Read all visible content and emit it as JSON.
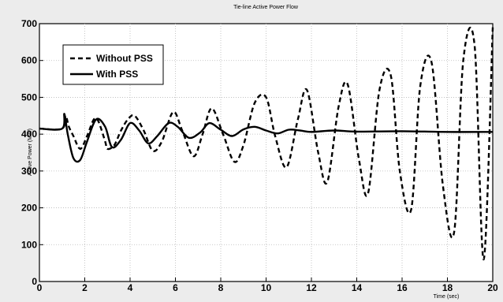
{
  "chart_data": {
    "type": "line",
    "title": "Tie-line Active Power Flow",
    "xlabel": "Time (sec)",
    "ylabel": "Active Power (MW)",
    "xlim": [
      0,
      20
    ],
    "ylim": [
      0,
      700
    ],
    "xticks": [
      "0",
      "2",
      "4",
      "6",
      "8",
      "10",
      "12",
      "14",
      "16",
      "18",
      "20"
    ],
    "yticks": [
      "0",
      "100",
      "200",
      "300",
      "400",
      "500",
      "600",
      "700"
    ],
    "grid": true,
    "legend": "top-left",
    "series": [
      {
        "name": "Without PSS",
        "style": "dashed",
        "color": "#000000",
        "x": [
          0,
          1.0,
          1.15,
          1.3,
          1.5,
          1.8,
          2.1,
          2.4,
          2.6,
          2.9,
          3.0,
          3.3,
          3.6,
          3.9,
          4.2,
          4.6,
          5.0,
          5.4,
          5.9,
          6.3,
          6.8,
          7.2,
          7.6,
          8.1,
          8.6,
          9.0,
          9.5,
          10.0,
          10.4,
          10.9,
          11.4,
          11.8,
          12.3,
          12.7,
          13.2,
          13.6,
          14.1,
          14.5,
          15.0,
          15.5,
          15.9,
          16.4,
          16.8,
          17.3,
          17.8,
          18.3,
          18.7,
          19.2,
          19.6,
          20.0
        ],
        "y": [
          415,
          415,
          450,
          420,
          395,
          360,
          395,
          440,
          435,
          380,
          360,
          370,
          410,
          440,
          450,
          410,
          355,
          380,
          460,
          410,
          340,
          400,
          470,
          400,
          325,
          370,
          485,
          500,
          395,
          310,
          440,
          520,
          350,
          270,
          475,
          535,
          330,
          240,
          520,
          560,
          300,
          195,
          530,
          595,
          260,
          135,
          600,
          640,
          60,
          690
        ]
      },
      {
        "name": "With PSS",
        "style": "solid",
        "color": "#000000",
        "x": [
          0,
          1.0,
          1.1,
          1.25,
          1.5,
          1.8,
          2.1,
          2.5,
          2.9,
          3.2,
          3.6,
          4.0,
          4.4,
          4.8,
          5.2,
          5.7,
          6.1,
          6.6,
          7.1,
          7.5,
          8.0,
          8.5,
          9.0,
          9.5,
          10.0,
          10.5,
          11.0,
          11.5,
          12.0,
          13.0,
          14.0,
          16.0,
          18.0,
          20.0
        ],
        "y": [
          415,
          415,
          455,
          400,
          335,
          330,
          380,
          440,
          420,
          365,
          385,
          430,
          410,
          375,
          395,
          430,
          420,
          390,
          405,
          430,
          412,
          395,
          413,
          420,
          410,
          402,
          412,
          410,
          406,
          410,
          407,
          408,
          406,
          406
        ]
      }
    ]
  }
}
